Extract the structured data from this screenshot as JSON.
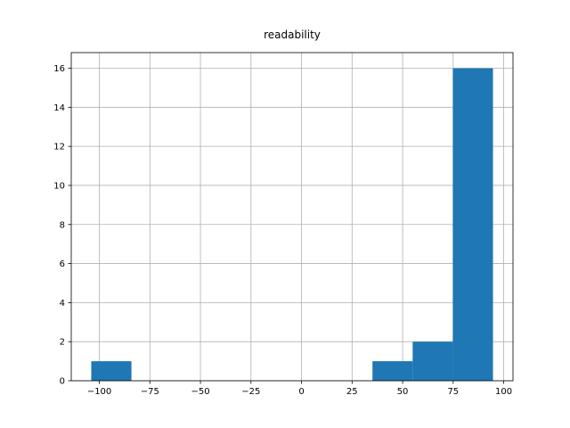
{
  "chart_data": {
    "type": "histogram",
    "title": "readability",
    "bins": [
      -104,
      -84.13,
      -64.26,
      -44.39,
      -24.52,
      -4.65,
      15.22,
      35.09,
      54.96,
      74.83,
      94.7
    ],
    "values": [
      1,
      0,
      0,
      0,
      0,
      0,
      0,
      1,
      2,
      16
    ],
    "color": "#1f77b4",
    "xlim": [
      -113.9,
      104.6
    ],
    "xticks": [
      {
        "value": -100,
        "label": "−100"
      },
      {
        "value": -75,
        "label": "−75"
      },
      {
        "value": -50,
        "label": "−50"
      },
      {
        "value": -25,
        "label": "−25"
      },
      0,
      25,
      50,
      75,
      100
    ],
    "ylim": [
      0,
      16.8
    ],
    "yticks": [
      0,
      2,
      4,
      6,
      8,
      10,
      12,
      14,
      16
    ],
    "grid": true
  }
}
